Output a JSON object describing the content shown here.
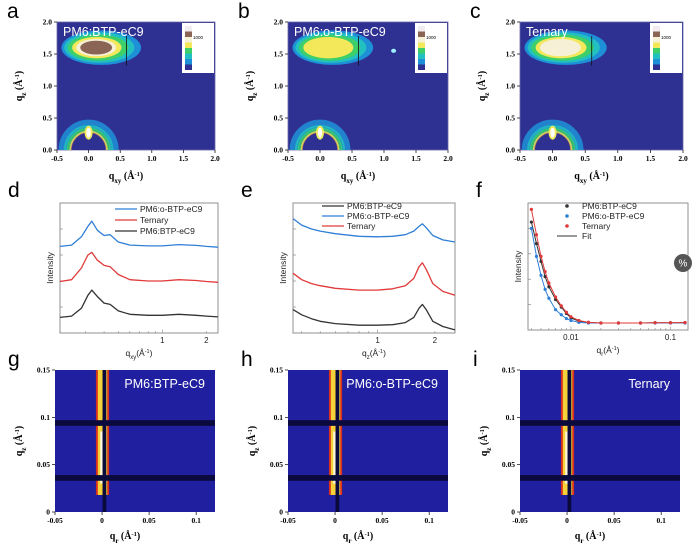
{
  "row1": {
    "panels": [
      {
        "letter": "a",
        "title": "PM6:BTP-eC9",
        "colorbar_label": "1000"
      },
      {
        "letter": "b",
        "title": "PM6:o-BTP-eC9",
        "colorbar_label": "1000"
      },
      {
        "letter": "c",
        "title": "Ternary",
        "colorbar_label": "1000"
      }
    ],
    "x_ticks": [
      "-0.5",
      "0.0",
      "0.5",
      "1.0",
      "1.5",
      "2.0"
    ],
    "y_ticks": [
      "0.0",
      "0.5",
      "1.0",
      "1.5",
      "2.0"
    ],
    "xlim": [
      -0.5,
      2.0
    ],
    "ylim": [
      0,
      2.0
    ],
    "xlabel": {
      "q": "q",
      "sub": "xy",
      "unit": " (Å",
      "exp": "-1",
      "close": ")"
    },
    "ylabel": {
      "q": "q",
      "sub": "z",
      "unit": " (Å",
      "exp": "-1",
      "close": ")"
    },
    "colors": {
      "background": "#2e3192",
      "low": "#1e90d8",
      "mid": "#3ccf6a",
      "high": "#f2e85a",
      "peak": "#8a6454"
    }
  },
  "chart_data": [
    {
      "type": "line",
      "panel": "d",
      "xscale": "log",
      "xlim": [
        0.2,
        2.4
      ],
      "ylim": [
        0,
        5
      ],
      "x_ticks": [
        "1",
        "2"
      ],
      "xlabel": {
        "q": "q",
        "sub": "xy",
        "unit": "(Å",
        "exp": "-1",
        "close": ")"
      },
      "ylabel": "Intensity",
      "legend_position": "top-right",
      "x": [
        0.2,
        0.24,
        0.28,
        0.31,
        0.33,
        0.36,
        0.4,
        0.44,
        0.5,
        0.6,
        0.8,
        1.0,
        1.3,
        1.7,
        2.0,
        2.4
      ],
      "series": [
        {
          "name": "PM6:o-BTP-eC9",
          "color": "#2f7fd6",
          "values": [
            3.33,
            3.38,
            3.7,
            4.1,
            4.3,
            3.95,
            3.75,
            3.78,
            3.5,
            3.38,
            3.35,
            3.35,
            3.4,
            3.37,
            3.33,
            3.3
          ]
        },
        {
          "name": "Ternary",
          "color": "#e03a3a",
          "values": [
            1.98,
            2.05,
            2.5,
            3.0,
            3.1,
            2.8,
            2.6,
            2.55,
            2.25,
            2.05,
            2.0,
            2.0,
            2.05,
            2.02,
            1.98,
            1.95
          ]
        },
        {
          "name": "PM6:BTP-eC9",
          "color": "#333333",
          "values": [
            0.6,
            0.65,
            0.95,
            1.45,
            1.65,
            1.4,
            1.15,
            1.1,
            0.85,
            0.72,
            0.68,
            0.68,
            0.72,
            0.68,
            0.65,
            0.62
          ]
        }
      ]
    },
    {
      "type": "line",
      "panel": "e",
      "xscale": "log",
      "xlim": [
        0.36,
        2.55
      ],
      "ylim": [
        0,
        5
      ],
      "x_ticks": [
        "1",
        "2"
      ],
      "xlabel": {
        "q": "q",
        "sub": "z",
        "unit": "(Å",
        "exp": "-1",
        "close": ")"
      },
      "ylabel": "Intensity",
      "legend_position": "top-left",
      "x": [
        0.36,
        0.4,
        0.45,
        0.5,
        0.6,
        0.8,
        1.0,
        1.2,
        1.4,
        1.55,
        1.65,
        1.72,
        1.8,
        1.95,
        2.2,
        2.55
      ],
      "series": [
        {
          "name": "PM6:BTP-eC9",
          "color": "#333333",
          "values": [
            0.9,
            0.7,
            0.55,
            0.45,
            0.36,
            0.3,
            0.3,
            0.32,
            0.4,
            0.6,
            0.95,
            1.1,
            0.9,
            0.45,
            0.25,
            0.12
          ]
        },
        {
          "name": "PM6:o-BTP-eC9",
          "color": "#2f7fd6",
          "values": [
            4.4,
            4.15,
            4.0,
            3.92,
            3.82,
            3.72,
            3.7,
            3.72,
            3.78,
            3.92,
            4.1,
            4.2,
            4.05,
            3.75,
            3.58,
            3.5
          ]
        },
        {
          "name": "Ternary",
          "color": "#e03a3a",
          "values": [
            2.3,
            2.05,
            1.9,
            1.82,
            1.72,
            1.65,
            1.65,
            1.7,
            1.82,
            2.1,
            2.55,
            2.7,
            2.45,
            1.9,
            1.6,
            1.45
          ]
        }
      ]
    },
    {
      "type": "scatter",
      "panel": "f",
      "xscale": "log",
      "xlim": [
        0.0037,
        0.15
      ],
      "ylim": [
        0,
        10
      ],
      "x_ticks": [
        "0.01",
        "0.1"
      ],
      "xlabel": {
        "q": "q",
        "sub": "r",
        "unit": "(Å",
        "exp": "-1",
        "close": ")"
      },
      "ylabel": "Intensity",
      "legend_position": "top-right",
      "fit_label": "Fit",
      "x": [
        0.004,
        0.0045,
        0.005,
        0.0055,
        0.006,
        0.007,
        0.008,
        0.009,
        0.01,
        0.012,
        0.015,
        0.02,
        0.03,
        0.05,
        0.07,
        0.1,
        0.14
      ],
      "series": [
        {
          "name": "PM6:BTP-eC9",
          "color": "#333333",
          "values": [
            8.5,
            6.8,
            5.4,
            4.2,
            3.4,
            2.4,
            1.8,
            1.3,
            0.95,
            0.7,
            0.6,
            0.55,
            0.55,
            0.55,
            0.57,
            0.57,
            0.58
          ]
        },
        {
          "name": "PM6:o-BTP-eC9",
          "color": "#2f7fd6",
          "values": [
            8.0,
            5.8,
            4.3,
            3.2,
            2.5,
            1.6,
            1.2,
            0.9,
            0.75,
            0.6,
            0.55,
            0.55,
            0.55,
            0.55,
            0.55,
            0.55,
            0.55
          ]
        },
        {
          "name": "Ternary",
          "color": "#e03a3a",
          "values": [
            9.5,
            7.5,
            5.8,
            4.6,
            3.7,
            2.6,
            1.9,
            1.4,
            1.05,
            0.75,
            0.6,
            0.55,
            0.55,
            0.55,
            0.57,
            0.57,
            0.58
          ]
        }
      ]
    }
  ],
  "row2_letters": [
    "d",
    "e",
    "f"
  ],
  "row3": {
    "panels": [
      {
        "letter": "g",
        "title": "PM6:BTP-eC9"
      },
      {
        "letter": "h",
        "title": "PM6:o-BTP-eC9"
      },
      {
        "letter": "i",
        "title": "Ternary"
      }
    ],
    "x_ticks": [
      "-0.05",
      "0",
      "0.05",
      "0.1"
    ],
    "y_ticks": [
      "0",
      "0.05",
      "0.1",
      "0.15"
    ],
    "xlim": [
      -0.05,
      0.12
    ],
    "ylim": [
      0,
      0.15
    ],
    "xlabel": {
      "q": "q",
      "sub": "r",
      "unit": " (Å",
      "exp": "-1",
      "close": ")"
    },
    "ylabel": {
      "q": "q",
      "sub": "z",
      "unit": " (Å",
      "exp": "-1",
      "close": ")"
    },
    "colors": {
      "background": "#1f1fa0",
      "streak": "#f5d23a",
      "streak_edge": "#d8301e",
      "mask": "#0a0a3c"
    }
  },
  "overlay": {
    "icon": "percent-icon",
    "symbol": "%"
  }
}
